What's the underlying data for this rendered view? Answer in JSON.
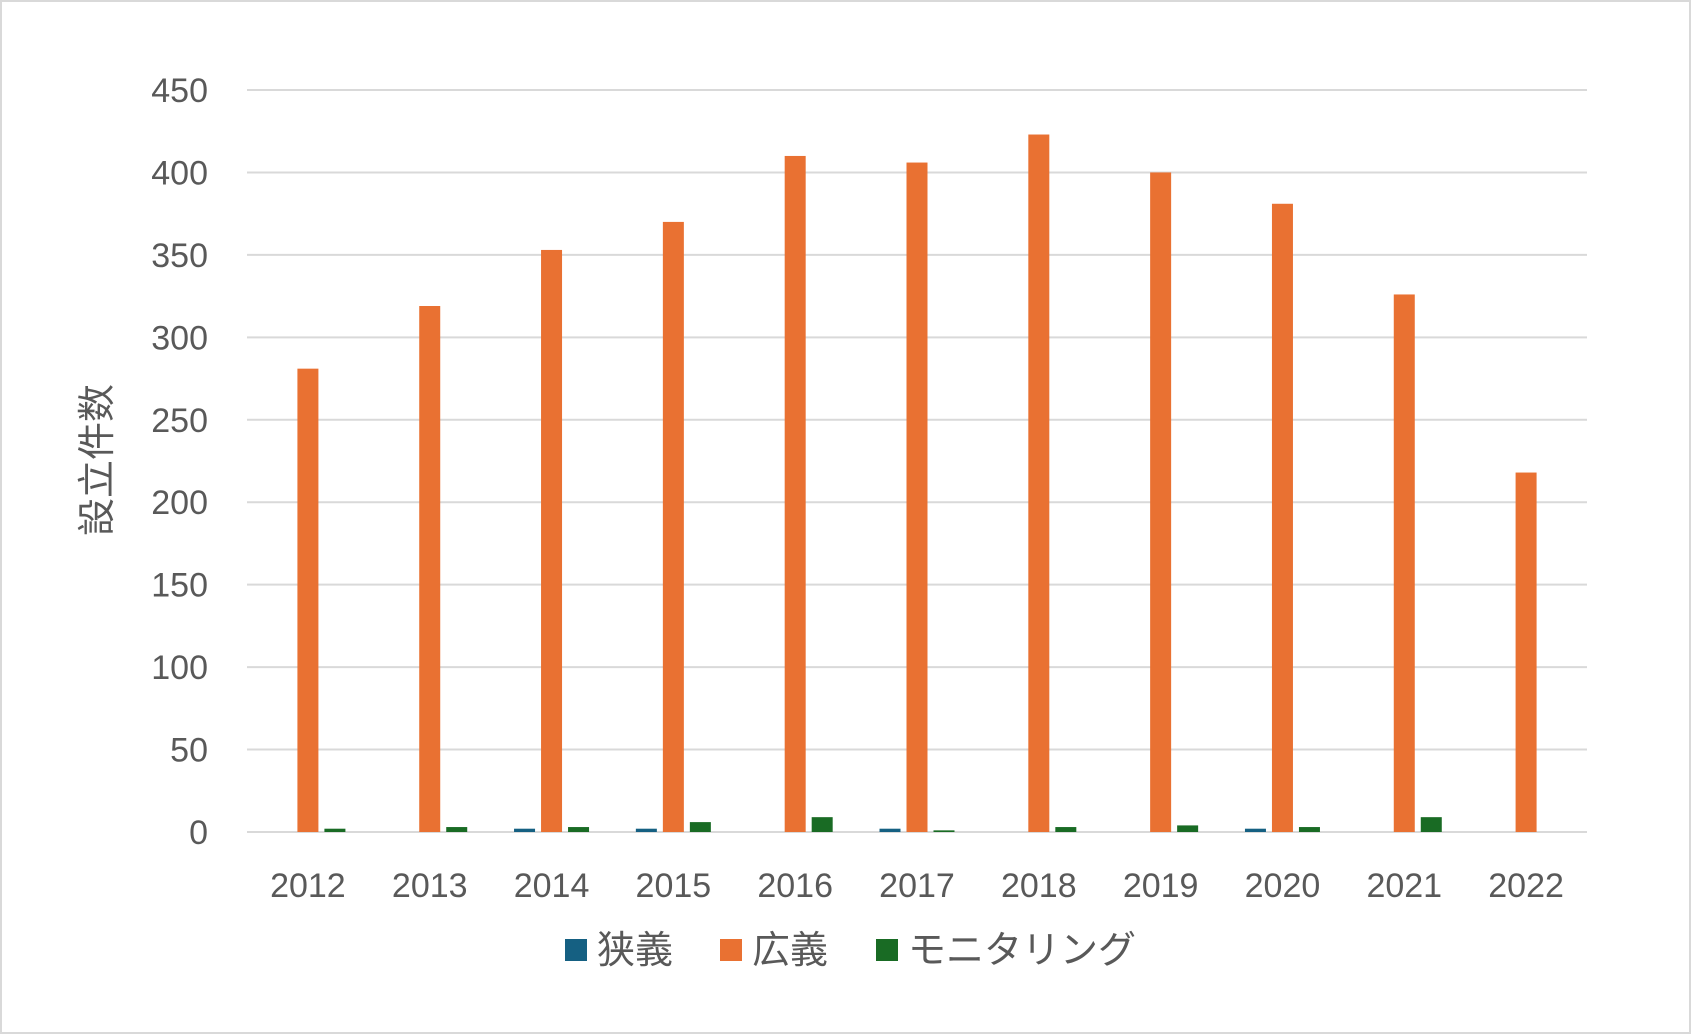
{
  "chart_data": {
    "type": "bar",
    "title": "",
    "xlabel": "",
    "ylabel": "設立件数",
    "ylim": [
      0,
      450
    ],
    "yticks": [
      0,
      50,
      100,
      150,
      200,
      250,
      300,
      350,
      400,
      450
    ],
    "grid": true,
    "legend_position": "bottom",
    "categories": [
      "2012",
      "2013",
      "2014",
      "2015",
      "2016",
      "2017",
      "2018",
      "2019",
      "2020",
      "2021",
      "2022"
    ],
    "series": [
      {
        "name": "狭義",
        "color": "#156082",
        "values": [
          0,
          0,
          2,
          2,
          0,
          2,
          0,
          0,
          2,
          0,
          0
        ]
      },
      {
        "name": "広義",
        "color": "#E97132",
        "values": [
          281,
          319,
          353,
          370,
          410,
          406,
          423,
          400,
          381,
          326,
          218
        ]
      },
      {
        "name": "モニタリング",
        "color": "#196B24",
        "values": [
          2,
          3,
          3,
          6,
          9,
          1,
          3,
          4,
          3,
          9,
          0
        ]
      }
    ]
  }
}
